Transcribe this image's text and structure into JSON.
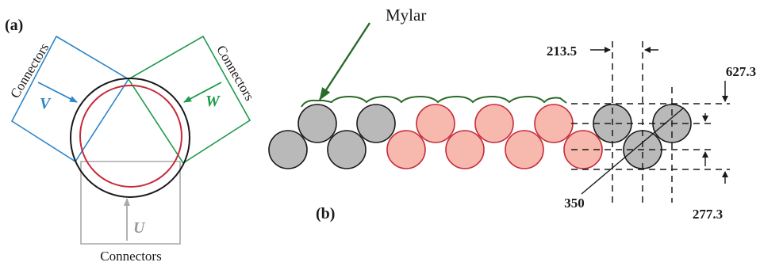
{
  "panel_a": {
    "label": "(a)",
    "connectors_left": "Connectors",
    "connectors_right": "Connectors",
    "connectors_bottom": "Connectors",
    "phase_v": "V",
    "phase_w": "W",
    "phase_u": "U"
  },
  "panel_b": {
    "label": "(b)",
    "mylar_label": "Mylar",
    "dim_213_5": "213.5",
    "dim_627_3": "627.3",
    "dim_350": "350",
    "dim_277_3": "277.3"
  },
  "colors": {
    "blue": "#2f86c8",
    "green": "#1e9a4b",
    "gray_frame": "#a9a9a9",
    "gray_text": "#9a9a9a",
    "red_circle": "#c62a3a",
    "mylar": "#2a6a2a",
    "tube_fill": "#b9b9b9",
    "pink_fill": "#f7b8ad",
    "black": "#1a1a1a"
  }
}
